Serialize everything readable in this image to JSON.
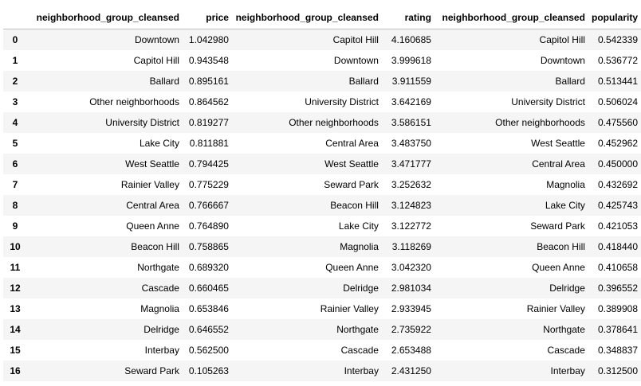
{
  "table": {
    "columns": [
      "",
      "neighborhood_group_cleansed",
      "price",
      "neighborhood_group_cleansed",
      "rating",
      "neighborhood_group_cleansed",
      "popularity"
    ],
    "rows": [
      [
        "0",
        "Downtown",
        "1.042980",
        "Capitol Hill",
        "4.160685",
        "Capitol Hill",
        "0.542339"
      ],
      [
        "1",
        "Capitol Hill",
        "0.943548",
        "Downtown",
        "3.999618",
        "Downtown",
        "0.536772"
      ],
      [
        "2",
        "Ballard",
        "0.895161",
        "Ballard",
        "3.911559",
        "Ballard",
        "0.513441"
      ],
      [
        "3",
        "Other neighborhoods",
        "0.864562",
        "University District",
        "3.642169",
        "University District",
        "0.506024"
      ],
      [
        "4",
        "University District",
        "0.819277",
        "Other neighborhoods",
        "3.586151",
        "Other neighborhoods",
        "0.475560"
      ],
      [
        "5",
        "Lake City",
        "0.811881",
        "Central Area",
        "3.483750",
        "West Seattle",
        "0.452962"
      ],
      [
        "6",
        "West Seattle",
        "0.794425",
        "West Seattle",
        "3.471777",
        "Central Area",
        "0.450000"
      ],
      [
        "7",
        "Rainier Valley",
        "0.775229",
        "Seward Park",
        "3.252632",
        "Magnolia",
        "0.432692"
      ],
      [
        "8",
        "Central Area",
        "0.766667",
        "Beacon Hill",
        "3.124823",
        "Lake City",
        "0.425743"
      ],
      [
        "9",
        "Queen Anne",
        "0.764890",
        "Lake City",
        "3.122772",
        "Seward Park",
        "0.421053"
      ],
      [
        "10",
        "Beacon Hill",
        "0.758865",
        "Magnolia",
        "3.118269",
        "Beacon Hill",
        "0.418440"
      ],
      [
        "11",
        "Northgate",
        "0.689320",
        "Queen Anne",
        "3.042320",
        "Queen Anne",
        "0.410658"
      ],
      [
        "12",
        "Cascade",
        "0.660465",
        "Delridge",
        "2.981034",
        "Delridge",
        "0.396552"
      ],
      [
        "13",
        "Magnolia",
        "0.653846",
        "Rainier Valley",
        "2.933945",
        "Rainier Valley",
        "0.389908"
      ],
      [
        "14",
        "Delridge",
        "0.646552",
        "Northgate",
        "2.735922",
        "Northgate",
        "0.378641"
      ],
      [
        "15",
        "Interbay",
        "0.562500",
        "Cascade",
        "2.653488",
        "Cascade",
        "0.348837"
      ],
      [
        "16",
        "Seward Park",
        "0.105263",
        "Interbay",
        "2.431250",
        "Interbay",
        "0.312500"
      ]
    ]
  }
}
